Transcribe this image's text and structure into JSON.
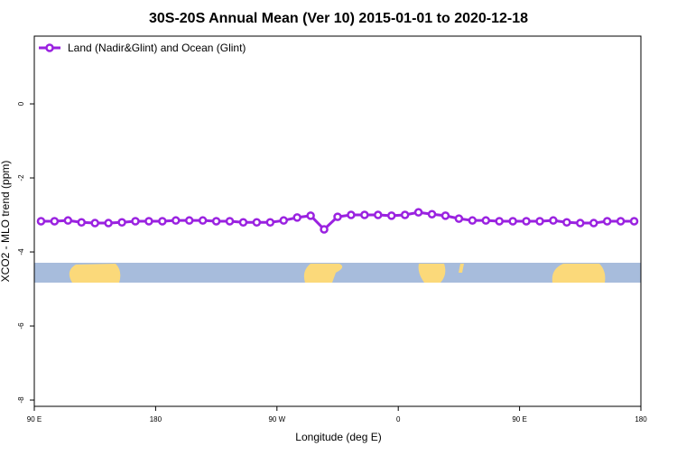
{
  "chart_data": {
    "type": "line",
    "title": "30S-20S Annual Mean (Ver 10)   2015-01-01 to 2020-12-18",
    "xlabel": "Longitude (deg E)",
    "ylabel": "XCO2 - MLO trend (ppm)",
    "x": [
      95,
      105,
      115,
      125,
      135,
      145,
      155,
      165,
      175,
      185,
      195,
      205,
      215,
      225,
      235,
      245,
      255,
      265,
      275,
      285,
      295,
      305,
      315,
      325,
      335,
      345,
      355,
      365,
      375,
      385,
      395,
      405,
      415,
      425,
      435,
      445,
      455,
      465,
      475,
      485,
      495,
      505,
      515,
      525,
      535
    ],
    "series": [
      {
        "name": "Land (Nadir&Glint) and Ocean (Glint)",
        "color": "#9a22e0",
        "values": [
          -3.17,
          -3.17,
          -3.15,
          -3.2,
          -3.22,
          -3.22,
          -3.2,
          -3.17,
          -3.17,
          -3.17,
          -3.15,
          -3.15,
          -3.15,
          -3.17,
          -3.17,
          -3.2,
          -3.2,
          -3.2,
          -3.15,
          -3.07,
          -3.02,
          -3.39,
          -3.05,
          -3.0,
          -3.0,
          -3.0,
          -3.02,
          -3.0,
          -2.93,
          -2.98,
          -3.02,
          -3.1,
          -3.15,
          -3.15,
          -3.17,
          -3.17,
          -3.17,
          -3.17,
          -3.15,
          -3.2,
          -3.22,
          -3.22,
          -3.17,
          -3.17,
          -3.17
        ]
      }
    ],
    "xlim": [
      90,
      540
    ],
    "xticks": [
      {
        "value": 90,
        "label": "90 E"
      },
      {
        "value": 180,
        "label": "180"
      },
      {
        "value": 270,
        "label": "90 W"
      },
      {
        "value": 360,
        "label": "0"
      },
      {
        "value": 450,
        "label": "90 E"
      },
      {
        "value": 540,
        "label": "180"
      }
    ],
    "ylim": [
      -8.17,
      1.83
    ],
    "yticks": [
      0,
      -2,
      -4,
      -6,
      -8
    ],
    "legend": "top-left"
  }
}
